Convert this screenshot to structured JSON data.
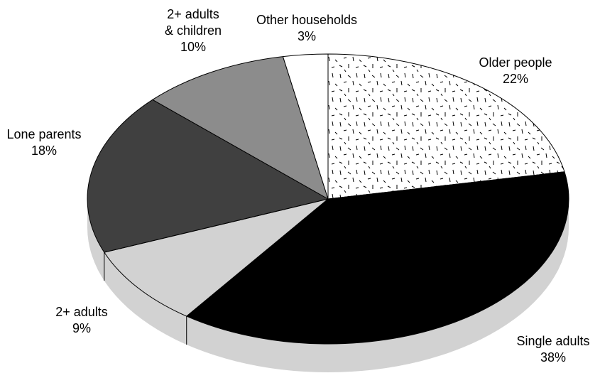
{
  "chart_data": {
    "type": "pie",
    "title": "",
    "start_angle_deg": 90,
    "direction": "clockwise",
    "slices": [
      {
        "label": "Older people",
        "value_label": "22%",
        "value": 22,
        "color": "#ffffff",
        "pattern": "dashes"
      },
      {
        "label": "Single adults",
        "value_label": "38%",
        "value": 38,
        "color": "#000000"
      },
      {
        "label": "2+ adults",
        "value_label": "9%",
        "value": 9,
        "color": "#d2d2d2"
      },
      {
        "label": "Lone parents",
        "value_label": "18%",
        "value": 18,
        "color": "#404040"
      },
      {
        "label": "2+ adults\n& children",
        "value_label": "10%",
        "value": 10,
        "color": "#8c8c8c"
      },
      {
        "label": "Other households",
        "value_label": "3%",
        "value": 3,
        "color": "#ffffff"
      }
    ],
    "side_color": "#d2d2d2"
  }
}
